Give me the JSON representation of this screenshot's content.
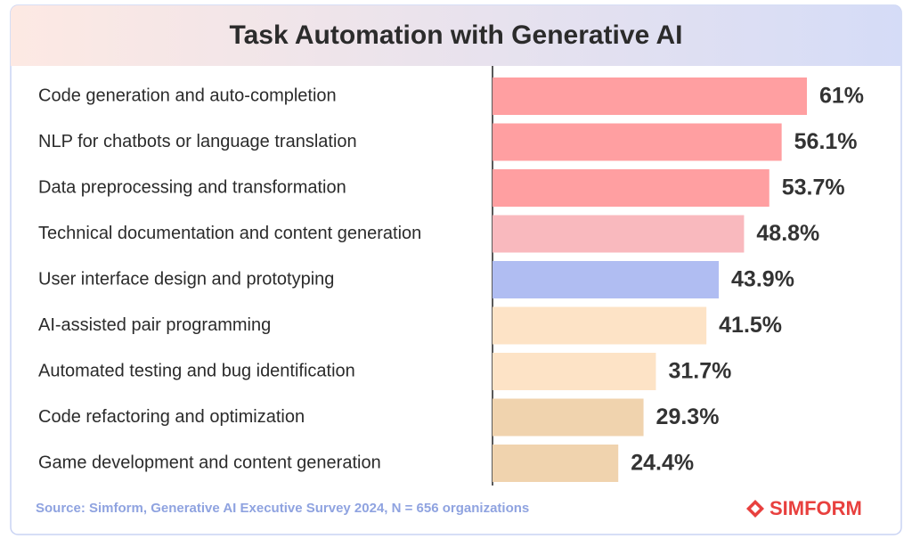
{
  "chart_data": {
    "type": "bar",
    "orientation": "horizontal",
    "title": "Task Automation with Generative AI",
    "categories": [
      "Code generation and auto-completion",
      "NLP for chatbots or language translation",
      "Data preprocessing and transformation",
      "Technical documentation and content generation",
      "User interface design and prototyping",
      "AI-assisted pair programming",
      "Automated testing and bug identification",
      "Code refactoring and optimization",
      "Game development and content generation"
    ],
    "values": [
      61,
      56.1,
      53.7,
      48.8,
      43.9,
      41.5,
      31.7,
      29.3,
      24.4
    ],
    "value_labels": [
      "61%",
      "56.1%",
      "53.7%",
      "48.8%",
      "43.9%",
      "41.5%",
      "31.7%",
      "29.3%",
      "24.4%"
    ],
    "colors": [
      "#ff9fa1",
      "#ff9fa1",
      "#ff9fa1",
      "#f9b9be",
      "#b0bdf2",
      "#fde3c6",
      "#fde3c6",
      "#f0d3ae",
      "#f0d3ae"
    ],
    "source": "Source: Simform, Generative AI Executive Survey 2024, N = 656 organizations",
    "logo": "SIMFORM"
  }
}
